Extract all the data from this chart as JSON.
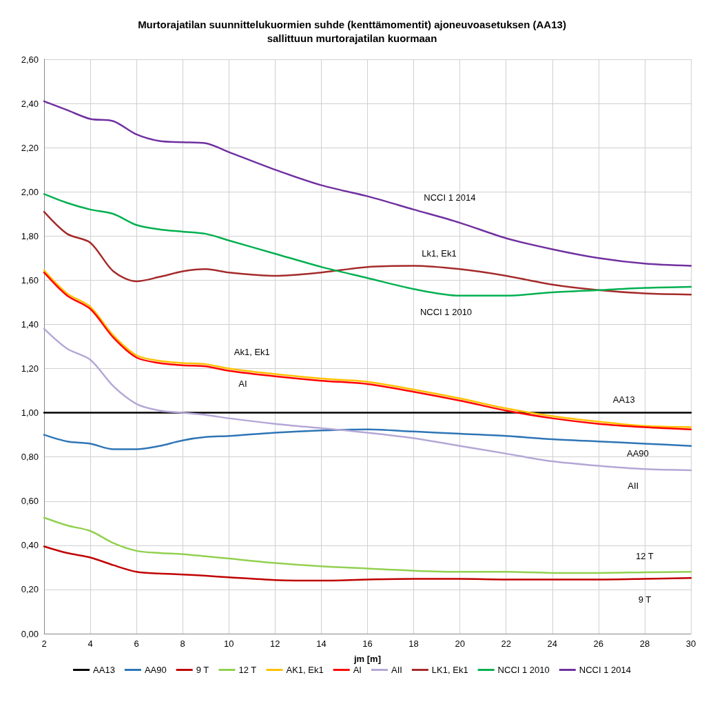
{
  "chart_data": {
    "type": "line",
    "title": "Murtorajatilan suunnittelukuormien suhde (kenttämomentit) ajoneuvoasetuksen (AA13)\nsallittuun murtorajatilan kuormaan",
    "xlabel": "jm [m]",
    "x": [
      2,
      3,
      4,
      5,
      6,
      7,
      8,
      9,
      10,
      12,
      14,
      16,
      18,
      20,
      22,
      24,
      26,
      28,
      30
    ],
    "xlim": [
      2,
      30
    ],
    "xticks": [
      2,
      4,
      6,
      8,
      10,
      12,
      14,
      16,
      18,
      20,
      22,
      24,
      26,
      28,
      30
    ],
    "ylim": [
      0,
      2.6
    ],
    "yticks": [
      {
        "value": 0,
        "label": "0,00"
      },
      {
        "value": 0.2,
        "label": "0,20"
      },
      {
        "value": 0.4,
        "label": "0,40"
      },
      {
        "value": 0.6,
        "label": "0,60"
      },
      {
        "value": 0.8,
        "label": "0,80"
      },
      {
        "value": 1,
        "label": "1,00"
      },
      {
        "value": 1.2,
        "label": "1,20"
      },
      {
        "value": 1.4,
        "label": "1,40"
      },
      {
        "value": 1.6,
        "label": "1,60"
      },
      {
        "value": 1.8,
        "label": "1,80"
      },
      {
        "value": 2,
        "label": "2,00"
      },
      {
        "value": 2.2,
        "label": "2,20"
      },
      {
        "value": 2.4,
        "label": "2,40"
      },
      {
        "value": 2.6,
        "label": "2,60"
      }
    ],
    "grid": true,
    "legend": "bottom",
    "marker": "none",
    "line_style": "solid",
    "series": [
      {
        "name": "AA13",
        "color": "#000000",
        "x": [
          2,
          30
        ],
        "values": [
          1.0,
          1.0
        ]
      },
      {
        "name": "AA90",
        "color": "#2e75b6",
        "values": [
          0.9,
          0.87,
          0.86,
          0.835,
          0.835,
          0.85,
          0.875,
          0.89,
          0.895,
          0.91,
          0.92,
          0.925,
          0.915,
          0.905,
          0.895,
          0.88,
          0.87,
          0.86,
          0.85
        ]
      },
      {
        "name": "9 T",
        "color": "#c00000",
        "values": [
          0.395,
          0.365,
          0.345,
          0.31,
          0.28,
          0.272,
          0.268,
          0.262,
          0.255,
          0.243,
          0.24,
          0.245,
          0.248,
          0.248,
          0.245,
          0.245,
          0.245,
          0.248,
          0.252
        ]
      },
      {
        "name": "12 T",
        "color": "#92d050",
        "values": [
          0.525,
          0.49,
          0.465,
          0.41,
          0.375,
          0.365,
          0.36,
          0.35,
          0.34,
          0.32,
          0.305,
          0.295,
          0.285,
          0.28,
          0.28,
          0.275,
          0.275,
          0.278,
          0.28
        ]
      },
      {
        "name": "AK1, Ek1",
        "color": "#ffc000",
        "values": [
          1.645,
          1.54,
          1.48,
          1.35,
          1.26,
          1.235,
          1.225,
          1.22,
          1.2,
          1.175,
          1.155,
          1.14,
          1.105,
          1.065,
          1.02,
          0.985,
          0.96,
          0.94,
          0.935
        ]
      },
      {
        "name": "AI",
        "color": "#ff0000",
        "values": [
          1.635,
          1.53,
          1.47,
          1.34,
          1.25,
          1.225,
          1.215,
          1.21,
          1.19,
          1.165,
          1.145,
          1.13,
          1.095,
          1.055,
          1.01,
          0.975,
          0.95,
          0.935,
          0.925
        ]
      },
      {
        "name": "AII",
        "color": "#b4a7d6",
        "values": [
          1.38,
          1.29,
          1.24,
          1.12,
          1.04,
          1.01,
          1.0,
          0.99,
          0.975,
          0.95,
          0.93,
          0.91,
          0.885,
          0.85,
          0.815,
          0.78,
          0.76,
          0.745,
          0.74
        ]
      },
      {
        "name": "LK1, Ek1",
        "color": "#a52a2a",
        "values": [
          1.91,
          1.81,
          1.77,
          1.64,
          1.595,
          1.615,
          1.64,
          1.65,
          1.635,
          1.62,
          1.635,
          1.66,
          1.665,
          1.65,
          1.62,
          1.58,
          1.555,
          1.54,
          1.535
        ]
      },
      {
        "name": "NCCI 1 2010",
        "color": "#00b050",
        "values": [
          1.99,
          1.95,
          1.92,
          1.9,
          1.85,
          1.83,
          1.82,
          1.81,
          1.78,
          1.72,
          1.66,
          1.61,
          1.56,
          1.53,
          1.53,
          1.545,
          1.555,
          1.565,
          1.57
        ]
      },
      {
        "name": "NCCI 1 2014",
        "color": "#7030a0",
        "values": [
          2.41,
          2.37,
          2.33,
          2.32,
          2.26,
          2.23,
          2.225,
          2.22,
          2.18,
          2.1,
          2.03,
          1.98,
          1.92,
          1.86,
          1.79,
          1.74,
          1.7,
          1.675,
          1.665
        ]
      }
    ],
    "annotations": [
      "NCCI 1 2014",
      "Lk1, Ek1",
      "NCCI 1 2010",
      "Ak1, Ek1",
      "AI",
      "AA13",
      "AA90",
      "AII",
      "12 T",
      "9 T"
    ]
  }
}
